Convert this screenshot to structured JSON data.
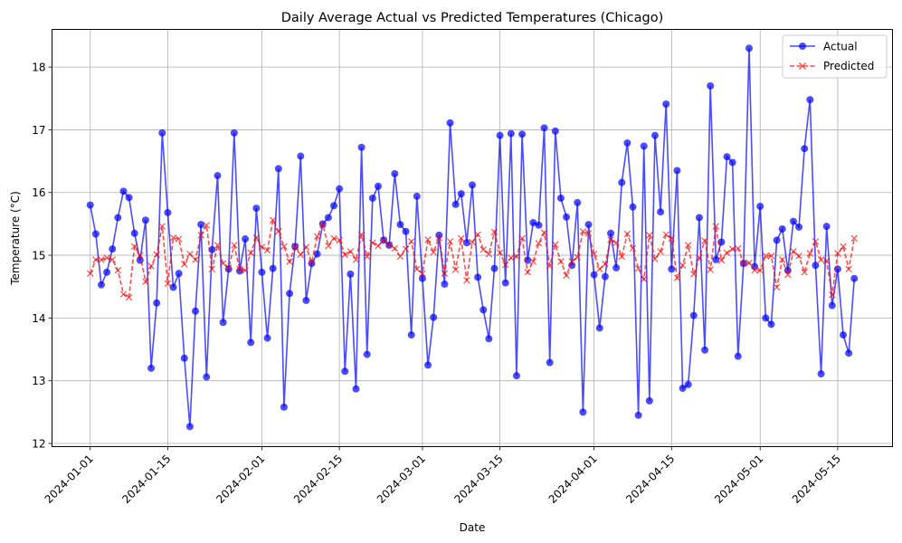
{
  "chart_data": {
    "type": "line",
    "title": "Daily Average Actual vs Predicted Temperatures (Chicago)",
    "xlabel": "Date",
    "ylabel": "Temperature (°C)",
    "x_start": "2024-01-01",
    "x_end": "2024-05-18",
    "x_ticks": [
      "2024-01-01",
      "2024-01-15",
      "2024-02-01",
      "2024-02-15",
      "2024-03-01",
      "2024-03-15",
      "2024-04-01",
      "2024-04-15",
      "2024-05-01",
      "2024-05-15"
    ],
    "y_ticks": [
      12,
      13,
      14,
      15,
      16,
      17,
      18
    ],
    "ylim": [
      11.95,
      18.6
    ],
    "grid": true,
    "legend_position": "top-right",
    "series": [
      {
        "name": "Actual",
        "color": "#0000ff",
        "marker": "circle",
        "line_style": "solid",
        "values": [
          15.8,
          15.34,
          14.53,
          14.73,
          15.1,
          15.6,
          16.02,
          15.92,
          15.35,
          14.92,
          15.56,
          13.2,
          14.24,
          16.95,
          15.68,
          14.49,
          14.71,
          13.36,
          12.27,
          14.11,
          15.49,
          13.06,
          15.09,
          16.27,
          13.93,
          14.78,
          16.95,
          14.75,
          15.26,
          13.61,
          15.75,
          14.73,
          13.68,
          14.79,
          16.38,
          12.58,
          14.39,
          15.14,
          16.58,
          14.28,
          14.87,
          15.02,
          15.5,
          15.6,
          15.79,
          16.06,
          13.15,
          14.7,
          12.87,
          16.72,
          13.42,
          15.91,
          16.1,
          15.24,
          15.16,
          16.3,
          15.49,
          15.38,
          13.73,
          15.94,
          14.63,
          13.25,
          14.01,
          15.32,
          14.54,
          17.11,
          15.81,
          15.98,
          15.2,
          16.12,
          14.65,
          14.13,
          13.67,
          14.79,
          16.91,
          14.56,
          16.94,
          13.08,
          16.93,
          14.92,
          15.52,
          15.48,
          17.03,
          13.29,
          16.98,
          15.91,
          15.61,
          14.84,
          15.84,
          12.5,
          15.49,
          14.69,
          13.84,
          14.66,
          15.35,
          14.8,
          16.16,
          16.79,
          15.77,
          12.45,
          16.74,
          12.68,
          16.91,
          15.69,
          17.41,
          14.78,
          16.35,
          12.88,
          12.94,
          14.04,
          15.6,
          13.49,
          17.7,
          14.93,
          15.21,
          16.57,
          16.48,
          13.39,
          14.87,
          18.3,
          14.82,
          15.78,
          14.0,
          13.9,
          15.24,
          15.42,
          14.76,
          15.54,
          15.45,
          16.7,
          17.48,
          14.84,
          13.11,
          15.46,
          14.2,
          14.78,
          13.73,
          13.44,
          14.63
        ]
      },
      {
        "name": "Predicted",
        "color": "#ff0000",
        "marker": "x",
        "line_style": "dashed",
        "values": [
          14.71,
          14.93,
          14.93,
          14.96,
          14.93,
          14.76,
          14.38,
          14.33,
          15.14,
          15.0,
          14.58,
          14.83,
          15.01,
          15.46,
          14.55,
          15.28,
          15.26,
          14.86,
          15.02,
          14.93,
          15.32,
          15.48,
          14.78,
          15.16,
          14.87,
          14.8,
          15.16,
          14.78,
          14.76,
          15.04,
          15.28,
          15.13,
          15.08,
          15.56,
          15.38,
          15.14,
          14.9,
          15.14,
          15.01,
          15.13,
          14.89,
          15.3,
          15.49,
          15.15,
          15.27,
          15.24,
          15.01,
          15.06,
          14.93,
          15.33,
          14.98,
          15.2,
          15.15,
          15.24,
          15.17,
          15.11,
          14.98,
          15.1,
          15.22,
          14.78,
          14.71,
          15.25,
          15.05,
          15.28,
          14.71,
          15.22,
          14.77,
          15.27,
          14.6,
          15.21,
          15.33,
          15.09,
          15.02,
          15.37,
          15.04,
          14.85,
          14.96,
          14.98,
          15.27,
          14.73,
          14.9,
          15.19,
          15.36,
          14.83,
          15.17,
          14.9,
          14.68,
          14.9,
          14.97,
          15.38,
          15.35,
          15.02,
          14.78,
          14.86,
          15.25,
          15.2,
          14.98,
          15.34,
          15.11,
          14.79,
          14.62,
          15.32,
          14.94,
          15.06,
          15.33,
          15.27,
          14.64,
          14.84,
          15.16,
          14.7,
          14.96,
          15.23,
          14.77,
          15.46,
          14.92,
          15.04,
          15.1,
          15.11,
          14.87,
          14.88,
          14.76,
          14.76,
          14.99,
          14.99,
          14.49,
          14.93,
          14.69,
          15.06,
          14.99,
          14.73,
          15.03,
          15.22,
          14.93,
          14.91,
          14.37,
          15.03,
          15.14,
          14.78,
          15.27
        ]
      }
    ]
  }
}
